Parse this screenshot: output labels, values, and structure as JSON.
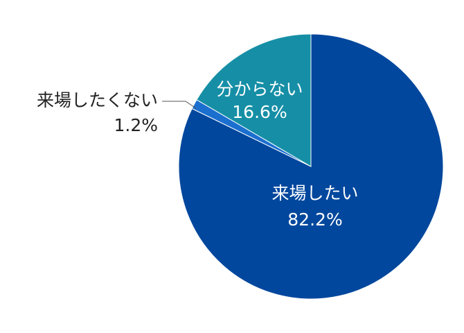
{
  "chart_data": {
    "type": "pie",
    "categories": [
      "来場したい",
      "来場したくない",
      "分からない"
    ],
    "values": [
      82.2,
      1.2,
      16.6
    ],
    "value_labels": [
      "82.2%",
      "1.2%",
      "16.6%"
    ],
    "colors": [
      "#00479d",
      "#1b6fcf",
      "#168fa6"
    ]
  }
}
